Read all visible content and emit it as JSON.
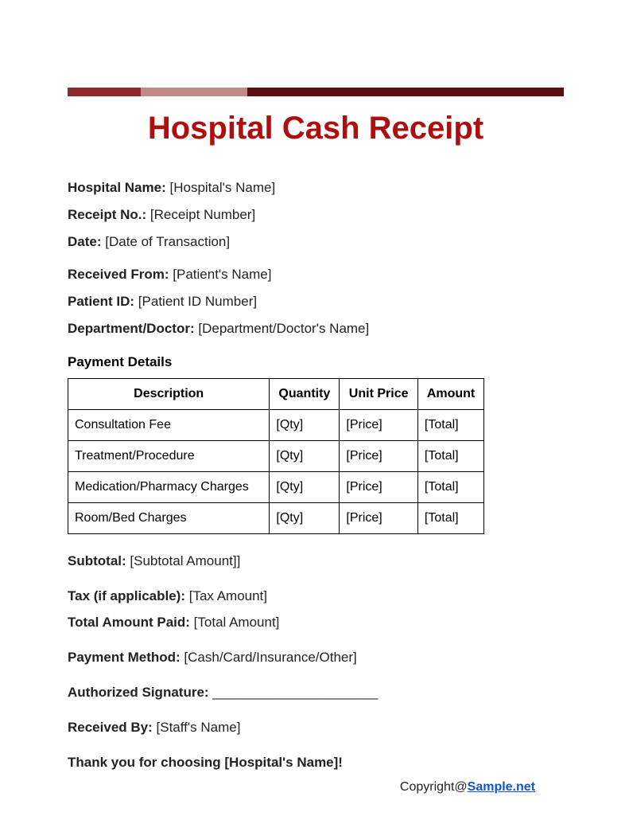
{
  "colors": {
    "title": "#af0e0e",
    "bar_seg1": "#8d2b2f",
    "bar_seg2": "#c08a8a",
    "bar_seg3": "#5a1010",
    "link": "#1155cc",
    "text": "#222222",
    "border": "#000000"
  },
  "title": "Hospital Cash Receipt",
  "header_fields": {
    "hospital_name": {
      "label": "Hospital Name:",
      "value": "[Hospital's Name]"
    },
    "receipt_no": {
      "label": "Receipt No.:",
      "value": "[Receipt Number]"
    },
    "date": {
      "label": "Date:",
      "value": "[Date of Transaction]"
    }
  },
  "patient_fields": {
    "received_from": {
      "label": "Received From:",
      "value": "[Patient's Name]"
    },
    "patient_id": {
      "label": "Patient ID:",
      "value": "[Patient ID Number]"
    },
    "department": {
      "label": "Department/Doctor:",
      "value": "[Department/Doctor's Name]"
    }
  },
  "payment_details_label": "Payment Details",
  "table": {
    "columns": [
      "Description",
      "Quantity",
      "Unit Price",
      "Amount"
    ],
    "rows": [
      [
        "Consultation Fee",
        "[Qty]",
        "[Price]",
        "[Total]"
      ],
      [
        "Treatment/Procedure",
        "[Qty]",
        "[Price]",
        "[Total]"
      ],
      [
        "Medication/Pharmacy Charges",
        "[Qty]",
        "[Price]",
        "[Total]"
      ],
      [
        "Room/Bed Charges",
        "[Qty]",
        "[Price]",
        "[Total]"
      ]
    ]
  },
  "totals": {
    "subtotal": {
      "label": "Subtotal:",
      "value": "[Subtotal Amount]]"
    },
    "tax": {
      "label": "Tax (if applicable):",
      "value": "[Tax Amount]"
    },
    "total_paid": {
      "label": "Total Amount Paid:",
      "value": "[Total Amount]"
    }
  },
  "payment_method": {
    "label": "Payment Method:",
    "value": "[Cash/Card/Insurance/Other]"
  },
  "signature": {
    "label": "Authorized Signature:",
    "value": "______________________"
  },
  "received_by": {
    "label": "Received By:",
    "value": "[Staff's Name]"
  },
  "thank_you": "Thank you for choosing [Hospital's Name]!",
  "footer": {
    "prefix": "Copyright@",
    "link_text": "Sample.net"
  }
}
